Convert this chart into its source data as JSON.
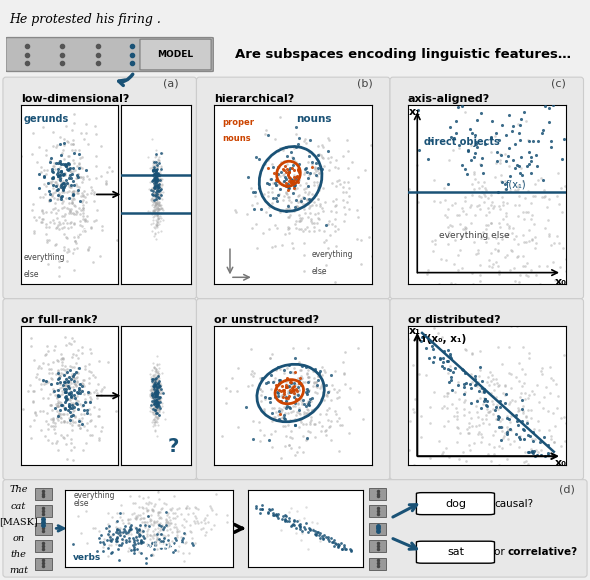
{
  "title_text": "Are subspaces encoding linguistic features…",
  "sentence_text": "He protested his firing .",
  "panel_bg": "#e8e8e8",
  "blue_color": "#1a5276",
  "blue_light": "#2e86c1",
  "orange_color": "#cc4400",
  "gray_color": "#aaaaaa",
  "dark_gray": "#444444",
  "seed": 42,
  "panel_a_title": "low-dimensional?",
  "panel_b_title": "hierarchical?",
  "panel_c_title": "axis-aligned?",
  "panel_a2_title": "or full-rank?",
  "panel_b2_title": "or unstructured?",
  "panel_c2_title": "or distributed?"
}
